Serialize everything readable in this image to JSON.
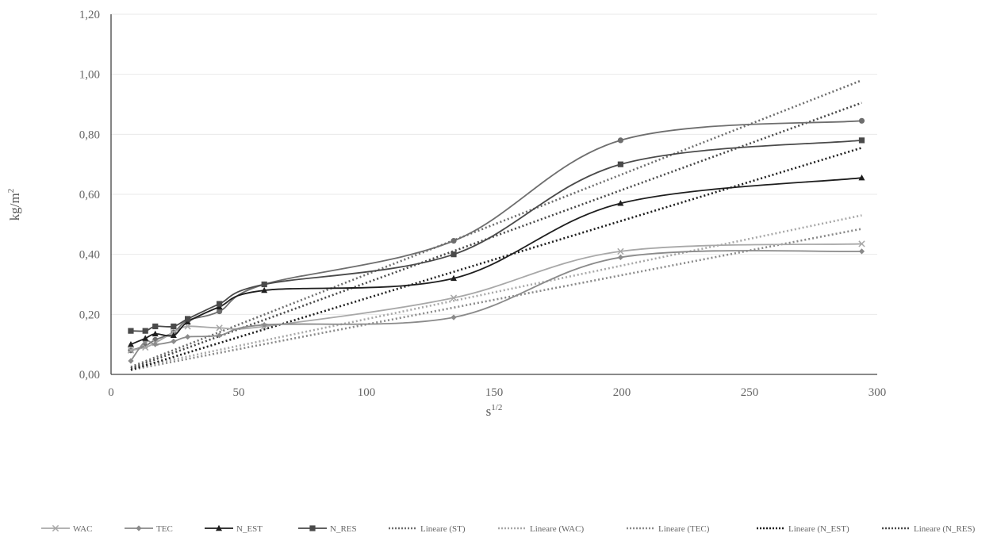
{
  "chart_data": {
    "type": "line",
    "title": "",
    "xlabel": "s",
    "xlabel_superscript": "1/2",
    "ylabel": "kg/m",
    "ylabel_superscript": "2",
    "xlim": [
      0,
      300
    ],
    "ylim": [
      0,
      1.2
    ],
    "x_ticks": [
      "0",
      "50",
      "100",
      "150",
      "200",
      "250",
      "300"
    ],
    "y_ticks": [
      "0,00",
      "0,20",
      "0,40",
      "0,60",
      "0,80",
      "1,00",
      "1,20"
    ],
    "grid": "horizontal",
    "legend_position": "bottom",
    "x": [
      7.75,
      13.42,
      17.32,
      24.49,
      30,
      42.43,
      60,
      134.16,
      199.5,
      293.94
    ],
    "series": [
      {
        "name": "ST",
        "label": "ST",
        "color": "#6e6e6e",
        "marker": "circle",
        "values": [
          0.08,
          0.095,
          0.115,
          0.14,
          0.18,
          0.21,
          0.3,
          0.445,
          0.78,
          0.845
        ]
      },
      {
        "name": "WAC",
        "label": "WAC",
        "color": "#a8a8a8",
        "marker": "x",
        "values": [
          0.08,
          0.09,
          0.105,
          0.14,
          0.16,
          0.155,
          0.16,
          0.255,
          0.41,
          0.435
        ]
      },
      {
        "name": "TEC",
        "label": "TEC",
        "color": "#8a8a8a",
        "marker": "diamond",
        "values": [
          0.045,
          0.11,
          0.1,
          0.11,
          0.125,
          0.13,
          0.165,
          0.19,
          0.39,
          0.41
        ]
      },
      {
        "name": "N_EST",
        "label": "N_EST",
        "color": "#1e1e1e",
        "marker": "triangle",
        "values": [
          0.1,
          0.12,
          0.135,
          0.13,
          0.175,
          0.225,
          0.28,
          0.32,
          0.57,
          0.655
        ]
      },
      {
        "name": "N_RES",
        "label": "N_RES",
        "color": "#4a4a4a",
        "marker": "square",
        "values": [
          0.145,
          0.145,
          0.16,
          0.16,
          0.185,
          0.235,
          0.3,
          0.4,
          0.7,
          0.78
        ]
      }
    ],
    "trendlines": [
      {
        "label": "Lineare (ST)",
        "color": "#6e6e6e",
        "x": [
          7.75,
          293.94
        ],
        "values": [
          0.025,
          0.98
        ]
      },
      {
        "label": "Lineare (WAC)",
        "color": "#a8a8a8",
        "x": [
          7.75,
          293.94
        ],
        "values": [
          0.02,
          0.53
        ]
      },
      {
        "label": "Lineare (TEC)",
        "color": "#8a8a8a",
        "x": [
          7.75,
          293.94
        ],
        "values": [
          0.015,
          0.485
        ]
      },
      {
        "label": "Lineare (N_EST)",
        "color": "#1e1e1e",
        "x": [
          7.75,
          293.94
        ],
        "values": [
          0.015,
          0.755
        ]
      },
      {
        "label": "Lineare (N_RES)",
        "color": "#4a4a4a",
        "x": [
          7.75,
          293.94
        ],
        "values": [
          0.02,
          0.905
        ]
      }
    ]
  }
}
